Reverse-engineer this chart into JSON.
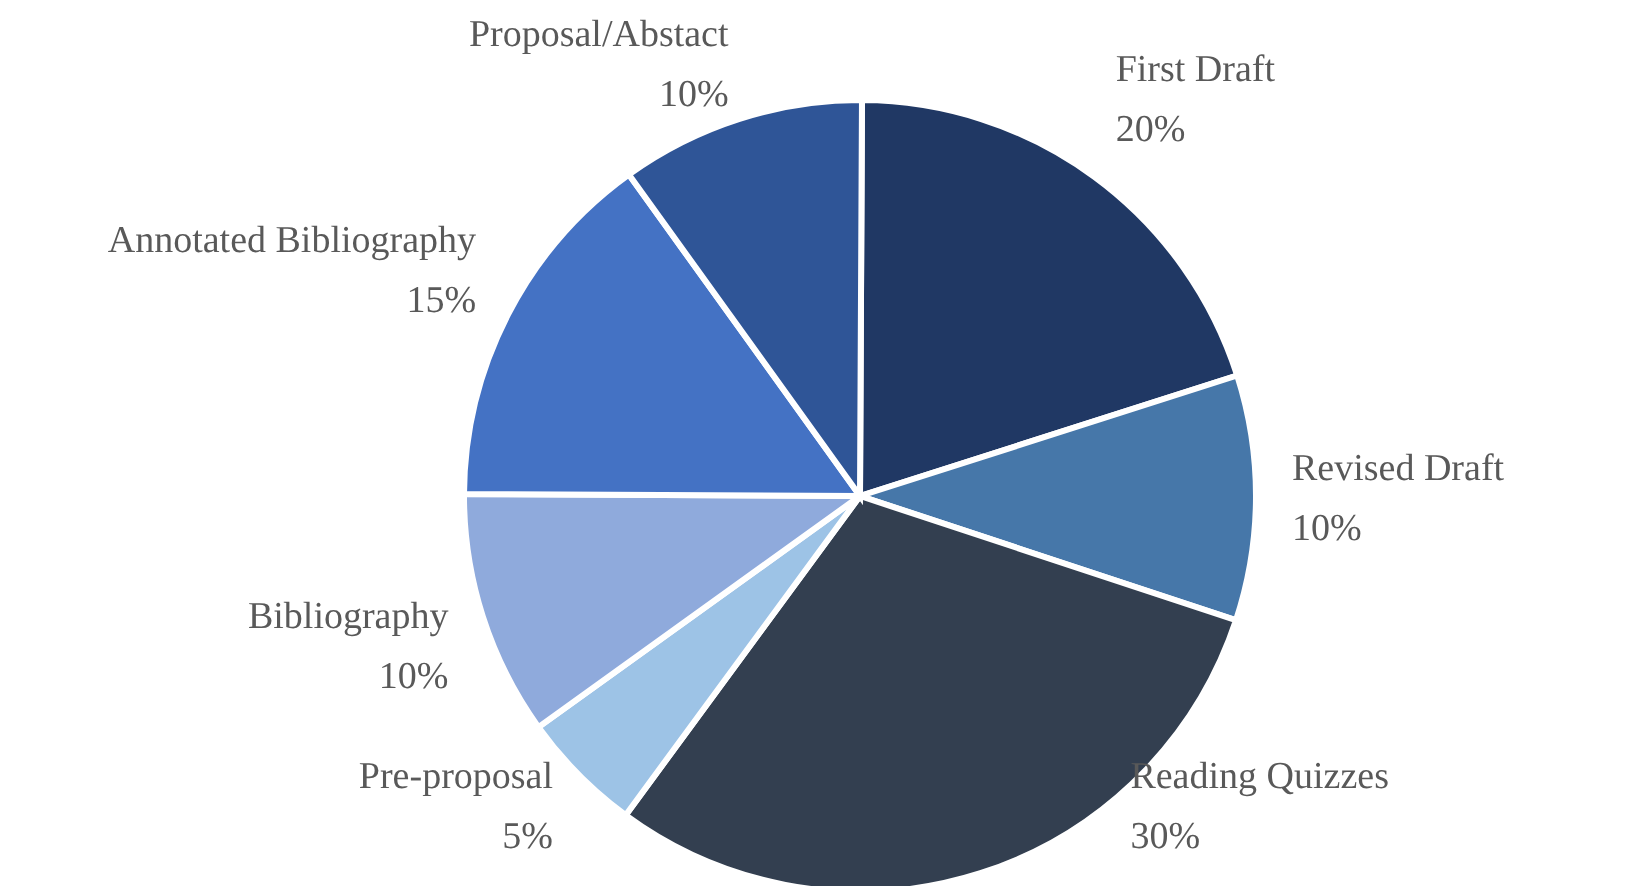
{
  "chart_data": {
    "type": "pie",
    "categories": [
      "First Draft",
      "Revised Draft",
      "Reading Quizzes",
      "Pre-proposal",
      "Bibliography",
      "Annotated Bibliography",
      "Proposal/Abstact"
    ],
    "values": [
      20,
      10,
      30,
      5,
      10,
      15,
      10
    ],
    "value_labels": [
      "20%",
      "10%",
      "30%",
      "5%",
      "10%",
      "15%",
      "10%"
    ],
    "colors": [
      "#203864",
      "#4677a9",
      "#333f50",
      "#9dc3e6",
      "#8faadc",
      "#4472c4",
      "#2f5597"
    ]
  }
}
